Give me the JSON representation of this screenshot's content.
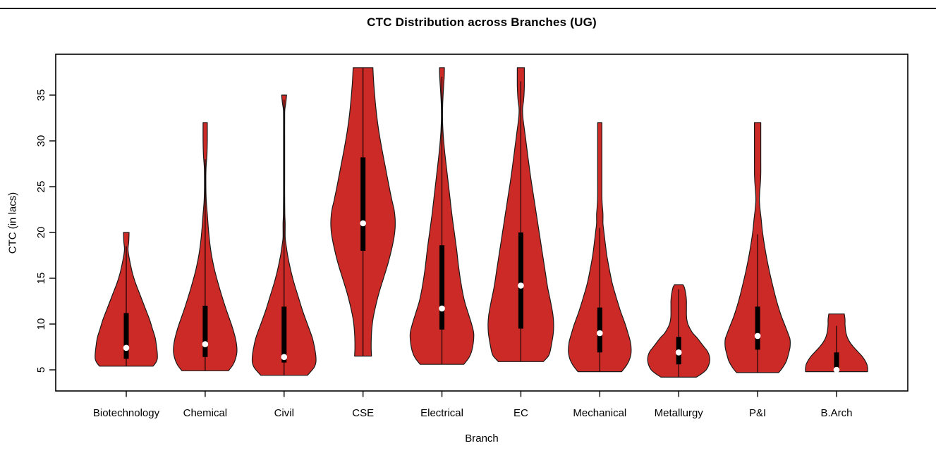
{
  "window": {
    "top_divider_color": "#000000",
    "background_color": "#ffffff"
  },
  "chart_data": {
    "type": "violin",
    "title": "CTC Distribution across Branches (UG)",
    "xlabel": "Branch",
    "ylabel": "CTC (in lacs)",
    "y_ticks": [
      5,
      10,
      15,
      20,
      25,
      30,
      35
    ],
    "ylim": [
      3.8,
      39.2
    ],
    "grid": false,
    "legend": "none",
    "fill_color": "#CC2A26",
    "outline_color": "#1a1a1a",
    "box_color": "#000000",
    "median_dot_color": "#FFFFFF",
    "categories": [
      "Biotechnology",
      "Chemical",
      "Civil",
      "CSE",
      "Electrical",
      "EC",
      "Mechanical",
      "Metallurgy",
      "P&I",
      "B.Arch"
    ],
    "series": [
      {
        "name": "Biotechnology",
        "min": 5.4,
        "max": 20,
        "q1": 6.2,
        "q3": 11.2,
        "median": 7.4,
        "whisker_top": 18.5,
        "profile": [
          [
            20,
            4
          ],
          [
            19,
            3.5
          ],
          [
            18.2,
            2.5
          ],
          [
            17.5,
            3.5
          ],
          [
            16.5,
            6
          ],
          [
            15.5,
            9
          ],
          [
            14.5,
            13
          ],
          [
            13.5,
            18
          ],
          [
            12.5,
            23
          ],
          [
            11.5,
            28
          ],
          [
            10.5,
            33
          ],
          [
            9.5,
            37
          ],
          [
            8.5,
            41
          ],
          [
            7.5,
            43
          ],
          [
            6.8,
            44
          ],
          [
            6.2,
            44
          ],
          [
            5.8,
            42
          ],
          [
            5.4,
            38
          ]
        ]
      },
      {
        "name": "Chemical",
        "min": 4.9,
        "max": 32,
        "q1": 6.4,
        "q3": 12,
        "median": 7.8,
        "whisker_top": 28,
        "profile": [
          [
            32,
            3
          ],
          [
            30,
            3
          ],
          [
            28.5,
            2.5
          ],
          [
            27,
            1.2
          ],
          [
            25,
            1
          ],
          [
            23.5,
            1.5
          ],
          [
            22,
            3
          ],
          [
            20,
            5
          ],
          [
            18,
            8
          ],
          [
            16,
            13
          ],
          [
            14,
            20
          ],
          [
            12,
            28
          ],
          [
            10,
            37
          ],
          [
            9,
            41
          ],
          [
            8,
            44
          ],
          [
            7,
            45
          ],
          [
            6.2,
            43
          ],
          [
            5.5,
            39
          ],
          [
            4.9,
            33
          ]
        ]
      },
      {
        "name": "Civil",
        "min": 4.4,
        "max": 35,
        "q1": 5.8,
        "q3": 11.9,
        "median": 6.4,
        "whisker_top": 34.5,
        "profile": [
          [
            35,
            3.5
          ],
          [
            34.2,
            2.5
          ],
          [
            33.4,
            1
          ],
          [
            32.5,
            0.8
          ],
          [
            30,
            0.8
          ],
          [
            28,
            0.8
          ],
          [
            26,
            0.8
          ],
          [
            24,
            0.8
          ],
          [
            22,
            1
          ],
          [
            21,
            1.5
          ],
          [
            19.5,
            1.5
          ],
          [
            18.8,
            2.5
          ],
          [
            17.5,
            5
          ],
          [
            16,
            9
          ],
          [
            14.5,
            14
          ],
          [
            13,
            20
          ],
          [
            11.5,
            26
          ],
          [
            10,
            33
          ],
          [
            8.5,
            40
          ],
          [
            7.5,
            43
          ],
          [
            6.5,
            45
          ],
          [
            5.8,
            45
          ],
          [
            5.2,
            42
          ],
          [
            4.4,
            33
          ]
        ]
      },
      {
        "name": "CSE",
        "min": 6.5,
        "max": 38,
        "q1": 18,
        "q3": 28.2,
        "median": 21,
        "whisker_top": 38,
        "profile": [
          [
            38,
            14
          ],
          [
            36.5,
            15
          ],
          [
            35,
            16.5
          ],
          [
            33,
            19
          ],
          [
            31,
            22.5
          ],
          [
            29,
            27
          ],
          [
            27,
            32
          ],
          [
            25,
            37
          ],
          [
            23.5,
            41
          ],
          [
            22.5,
            44
          ],
          [
            21.5,
            45.5
          ],
          [
            20.5,
            45.5
          ],
          [
            19.5,
            44
          ],
          [
            18,
            40
          ],
          [
            16.5,
            35
          ],
          [
            15,
            29
          ],
          [
            13.5,
            23
          ],
          [
            12,
            18
          ],
          [
            10.5,
            14
          ],
          [
            9,
            12
          ],
          [
            7.5,
            11.5
          ],
          [
            6.5,
            12
          ]
        ]
      },
      {
        "name": "Electrical",
        "min": 5.6,
        "max": 38,
        "q1": 9.4,
        "q3": 18.6,
        "median": 11.7,
        "whisker_top": 37,
        "profile": [
          [
            38,
            3.5
          ],
          [
            37,
            3.2
          ],
          [
            35.5,
            2
          ],
          [
            34,
            1
          ],
          [
            32.5,
            0.8
          ],
          [
            31,
            1.5
          ],
          [
            29.5,
            3
          ],
          [
            28,
            5
          ],
          [
            26,
            8
          ],
          [
            24,
            11
          ],
          [
            22,
            14
          ],
          [
            20,
            17.5
          ],
          [
            18,
            21
          ],
          [
            16,
            24
          ],
          [
            14,
            28
          ],
          [
            12.5,
            32
          ],
          [
            11,
            38
          ],
          [
            10,
            42
          ],
          [
            9,
            45
          ],
          [
            8,
            44.5
          ],
          [
            7,
            42
          ],
          [
            6.3,
            38
          ],
          [
            5.6,
            31
          ]
        ]
      },
      {
        "name": "EC",
        "min": 5.9,
        "max": 38,
        "q1": 9.5,
        "q3": 20,
        "median": 14.2,
        "whisker_top": 36.5,
        "profile": [
          [
            38,
            5
          ],
          [
            36,
            5
          ],
          [
            34.5,
            4
          ],
          [
            33.5,
            2.5
          ],
          [
            32.5,
            3
          ],
          [
            31,
            5.5
          ],
          [
            29.5,
            8
          ],
          [
            28,
            10.5
          ],
          [
            26,
            14
          ],
          [
            24,
            18
          ],
          [
            22,
            22
          ],
          [
            20,
            26
          ],
          [
            18,
            30
          ],
          [
            16,
            34
          ],
          [
            14,
            38
          ],
          [
            12.5,
            42
          ],
          [
            11,
            45.5
          ],
          [
            10,
            46.5
          ],
          [
            9,
            46
          ],
          [
            8,
            44
          ],
          [
            7,
            41.5
          ],
          [
            6.5,
            39
          ],
          [
            5.9,
            32
          ]
        ]
      },
      {
        "name": "Mechanical",
        "min": 4.8,
        "max": 32,
        "q1": 6.9,
        "q3": 11.8,
        "median": 9,
        "whisker_top": 20.5,
        "profile": [
          [
            32,
            3
          ],
          [
            30,
            3
          ],
          [
            28,
            3
          ],
          [
            26,
            3
          ],
          [
            24,
            3
          ],
          [
            23,
            3.5
          ],
          [
            22,
            4.5
          ],
          [
            21,
            4.5
          ],
          [
            20.3,
            5.5
          ],
          [
            19,
            7.5
          ],
          [
            17.5,
            10
          ],
          [
            16,
            13.5
          ],
          [
            14.5,
            17.5
          ],
          [
            13,
            23
          ],
          [
            11.5,
            29
          ],
          [
            10,
            36
          ],
          [
            9,
            40
          ],
          [
            8,
            43.5
          ],
          [
            7,
            44.5
          ],
          [
            6.2,
            42.5
          ],
          [
            5.5,
            38
          ],
          [
            4.8,
            31
          ]
        ]
      },
      {
        "name": "Metallurgy",
        "min": 4.2,
        "max": 14.3,
        "q1": 5.6,
        "q3": 8.6,
        "median": 6.9,
        "whisker_top": 13.8,
        "profile": [
          [
            14.3,
            6
          ],
          [
            14,
            8
          ],
          [
            13.5,
            9.5
          ],
          [
            13,
            10.5
          ],
          [
            12.5,
            11
          ],
          [
            12,
            11
          ],
          [
            11.5,
            11
          ],
          [
            11,
            11
          ],
          [
            10.5,
            11.5
          ],
          [
            10,
            13
          ],
          [
            9.5,
            16
          ],
          [
            9,
            20
          ],
          [
            8.5,
            26
          ],
          [
            8,
            31
          ],
          [
            7.5,
            36
          ],
          [
            7,
            41
          ],
          [
            6.5,
            43.5
          ],
          [
            6,
            44
          ],
          [
            5.5,
            42.5
          ],
          [
            5,
            39
          ],
          [
            4.6,
            33
          ],
          [
            4.2,
            25
          ]
        ]
      },
      {
        "name": "P&I",
        "min": 4.7,
        "max": 32,
        "q1": 7.2,
        "q3": 11.9,
        "median": 8.7,
        "whisker_top": 19.8,
        "profile": [
          [
            32,
            4.5
          ],
          [
            30,
            4.5
          ],
          [
            28,
            4.5
          ],
          [
            26.5,
            4.5
          ],
          [
            25.5,
            4
          ],
          [
            24.5,
            3
          ],
          [
            23.5,
            2.5
          ],
          [
            22.5,
            3.5
          ],
          [
            21.5,
            5
          ],
          [
            20,
            7
          ],
          [
            18,
            11
          ],
          [
            16,
            16
          ],
          [
            14,
            22
          ],
          [
            12.5,
            27
          ],
          [
            11,
            33
          ],
          [
            10,
            38
          ],
          [
            9,
            43
          ],
          [
            8.3,
            46
          ],
          [
            7.5,
            46
          ],
          [
            6.8,
            44
          ],
          [
            6,
            41
          ],
          [
            5.3,
            36
          ],
          [
            4.7,
            30
          ]
        ]
      },
      {
        "name": "B.Arch",
        "min": 4.8,
        "max": 11.1,
        "q1": 4.9,
        "q3": 6.9,
        "median": 5.0,
        "whisker_top": 9.8,
        "profile": [
          [
            11.1,
            11
          ],
          [
            10.5,
            12
          ],
          [
            10,
            12
          ],
          [
            9.5,
            12.5
          ],
          [
            9,
            13.5
          ],
          [
            8.5,
            15.5
          ],
          [
            8,
            19
          ],
          [
            7.5,
            24
          ],
          [
            7,
            30
          ],
          [
            6.5,
            36
          ],
          [
            6,
            40.5
          ],
          [
            5.6,
            43
          ],
          [
            5.2,
            44
          ],
          [
            4.8,
            44
          ]
        ]
      }
    ]
  }
}
